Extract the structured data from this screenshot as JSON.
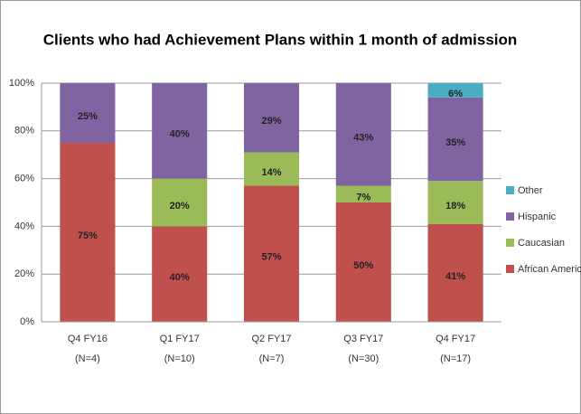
{
  "chart_data": {
    "type": "stacked_bar",
    "title": "Clients who had Achievement Plans within 1 month of admission",
    "categories": [
      [
        "Q4 FY16",
        "(N=4)"
      ],
      [
        "Q1 FY17",
        "(N=10)"
      ],
      [
        "Q2 FY17",
        "(N=7)"
      ],
      [
        "Q3 FY17",
        "(N=30)"
      ],
      [
        "Q4 FY17",
        "(N=17)"
      ]
    ],
    "series": [
      {
        "name": "African American",
        "color": "#c0504d",
        "values": [
          75,
          40,
          57,
          50,
          41
        ],
        "value_labels": [
          "75%",
          "40%",
          "57%",
          "50%",
          "41%"
        ]
      },
      {
        "name": "Caucasian",
        "color": "#9bbb59",
        "values": [
          0,
          20,
          14,
          7,
          18
        ],
        "value_labels": [
          null,
          "20%",
          "14%",
          "7%",
          "18%"
        ]
      },
      {
        "name": "Hispanic",
        "color": "#8064a2",
        "values": [
          25,
          40,
          29,
          43,
          35
        ],
        "value_labels": [
          "25%",
          "40%",
          "29%",
          "43%",
          "35%"
        ]
      },
      {
        "name": "Other",
        "color": "#4bacc6",
        "values": [
          0,
          0,
          0,
          0,
          6
        ],
        "value_labels": [
          null,
          null,
          null,
          null,
          "6%"
        ]
      }
    ],
    "ylim": [
      0,
      100
    ],
    "yticks": [
      {
        "value": 0,
        "label": "0%"
      },
      {
        "value": 20,
        "label": "20%"
      },
      {
        "value": 40,
        "label": "40%"
      },
      {
        "value": 60,
        "label": "60%"
      },
      {
        "value": 80,
        "label": "80%"
      },
      {
        "value": 100,
        "label": "100%"
      }
    ],
    "grid": true,
    "legend": "right"
  }
}
